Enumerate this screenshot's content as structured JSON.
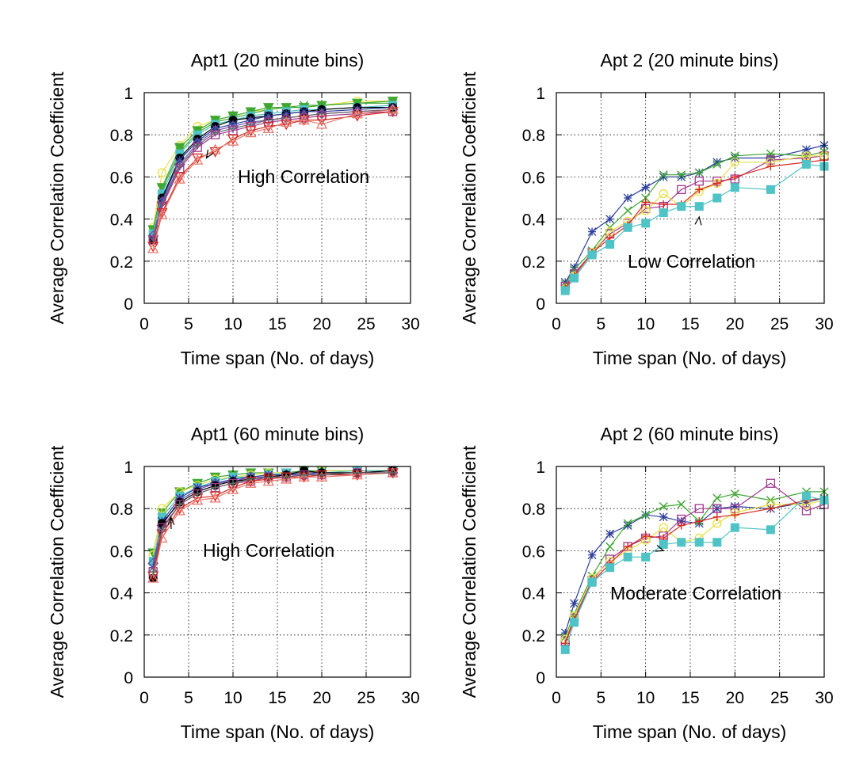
{
  "colors": {
    "red": "#d6281f",
    "navy": "#2c3f9c",
    "green": "#3ea832",
    "yellow": "#e8e045",
    "teal": "#4fc3c6",
    "magenta": "#a0388e",
    "purple": "#7050a8",
    "black": "#000000",
    "gray": "#666666",
    "salmon": "#e8786c",
    "gridline": "#000000"
  },
  "chart_data": [
    {
      "type": "line",
      "title": "Apt1 (20 minute bins)",
      "xlabel": "Time span (No. of days)",
      "ylabel": "Average Correlation Coefficient",
      "xlim": [
        0,
        30
      ],
      "ylim": [
        0,
        1
      ],
      "xticks": [
        "0",
        "5",
        "10",
        "15",
        "20",
        "25",
        "30"
      ],
      "yticks": [
        "0",
        "0.2",
        "0.4",
        "0.6",
        "0.8",
        "1"
      ],
      "grid": true,
      "annotation": {
        "text": "High Correlation",
        "x": 7,
        "y": 0.69
      },
      "x": [
        1,
        2,
        4,
        6,
        8,
        10,
        12,
        14,
        16,
        18,
        20,
        24,
        28
      ],
      "series": [
        {
          "color": "#e8e045",
          "marker": "circle-open",
          "values": [
            0.36,
            0.62,
            0.75,
            0.84,
            0.87,
            0.89,
            0.91,
            0.92,
            0.93,
            0.93,
            0.94,
            0.96,
            0.96
          ]
        },
        {
          "color": "#3ea832",
          "marker": "triangle-down-filled",
          "values": [
            0.35,
            0.55,
            0.74,
            0.82,
            0.87,
            0.89,
            0.91,
            0.93,
            0.93,
            0.93,
            0.94,
            0.95,
            0.96
          ]
        },
        {
          "color": "#3ea832",
          "marker": "x",
          "values": [
            0.34,
            0.54,
            0.72,
            0.81,
            0.86,
            0.88,
            0.9,
            0.92,
            0.93,
            0.94,
            0.94,
            0.95,
            0.95
          ]
        },
        {
          "color": "#4fc3c6",
          "marker": "square-filled",
          "values": [
            0.33,
            0.52,
            0.71,
            0.8,
            0.85,
            0.87,
            0.89,
            0.9,
            0.91,
            0.92,
            0.92,
            0.93,
            0.94
          ]
        },
        {
          "color": "#000000",
          "marker": "circle-filled",
          "values": [
            0.3,
            0.5,
            0.69,
            0.78,
            0.84,
            0.87,
            0.88,
            0.89,
            0.9,
            0.91,
            0.92,
            0.93,
            0.93
          ]
        },
        {
          "color": "#2c3f9c",
          "marker": "star",
          "values": [
            0.31,
            0.49,
            0.68,
            0.77,
            0.83,
            0.85,
            0.87,
            0.89,
            0.9,
            0.91,
            0.91,
            0.92,
            0.93
          ]
        },
        {
          "color": "#7050a8",
          "marker": "diamond-open",
          "values": [
            0.32,
            0.48,
            0.66,
            0.76,
            0.82,
            0.84,
            0.86,
            0.87,
            0.88,
            0.89,
            0.9,
            0.91,
            0.92
          ]
        },
        {
          "color": "#666666",
          "marker": "plus",
          "values": [
            0.31,
            0.47,
            0.65,
            0.75,
            0.81,
            0.83,
            0.85,
            0.87,
            0.88,
            0.89,
            0.9,
            0.91,
            0.92
          ]
        },
        {
          "color": "#a0388e",
          "marker": "square-open",
          "values": [
            0.3,
            0.46,
            0.64,
            0.74,
            0.8,
            0.82,
            0.84,
            0.86,
            0.87,
            0.88,
            0.89,
            0.9,
            0.91
          ]
        },
        {
          "color": "#d6281f",
          "marker": "triangle-down-open",
          "values": [
            0.27,
            0.43,
            0.6,
            0.69,
            0.72,
            0.78,
            0.82,
            0.84,
            0.85,
            0.87,
            0.87,
            0.89,
            0.91
          ]
        },
        {
          "color": "#e8786c",
          "marker": "triangle-up-open",
          "values": [
            0.26,
            0.42,
            0.59,
            0.68,
            0.73,
            0.77,
            0.81,
            0.83,
            0.86,
            0.87,
            0.85,
            0.9,
            0.92
          ]
        }
      ]
    },
    {
      "type": "line",
      "title": "Apt 2 (20 minute bins)",
      "xlabel": "Time span (No. of days)",
      "ylabel": "Average Correlation Coefficient",
      "xlim": [
        0,
        30
      ],
      "ylim": [
        0,
        1
      ],
      "xticks": [
        "0",
        "5",
        "10",
        "15",
        "20",
        "25",
        "30"
      ],
      "yticks": [
        "0",
        "0.2",
        "0.4",
        "0.6",
        "0.8",
        "1"
      ],
      "grid": true,
      "annotation": {
        "text": "Low Correlation",
        "x": 16,
        "y": 0.41
      },
      "x": [
        1,
        2,
        4,
        6,
        8,
        10,
        12,
        14,
        16,
        18,
        20,
        24,
        28,
        30
      ],
      "series": [
        {
          "color": "#2c3f9c",
          "marker": "star",
          "values": [
            0.1,
            0.17,
            0.34,
            0.4,
            0.5,
            0.55,
            0.6,
            0.6,
            0.62,
            0.67,
            0.69,
            0.69,
            0.73,
            0.75
          ]
        },
        {
          "color": "#3ea832",
          "marker": "x",
          "values": [
            0.09,
            0.16,
            0.25,
            0.36,
            0.44,
            0.5,
            0.61,
            0.61,
            0.62,
            0.66,
            0.7,
            0.71,
            0.7,
            0.72
          ]
        },
        {
          "color": "#a0388e",
          "marker": "square-open",
          "values": [
            0.08,
            0.14,
            0.24,
            0.33,
            0.38,
            0.45,
            0.46,
            0.54,
            0.58,
            0.58,
            0.59,
            0.68,
            0.69,
            0.7
          ]
        },
        {
          "color": "#e8e045",
          "marker": "circle-open",
          "values": [
            0.07,
            0.13,
            0.24,
            0.34,
            0.39,
            0.44,
            0.52,
            0.46,
            0.53,
            0.57,
            0.67,
            0.67,
            0.7,
            0.7
          ]
        },
        {
          "color": "#d6281f",
          "marker": "plus",
          "values": [
            0.07,
            0.13,
            0.24,
            0.31,
            0.37,
            0.48,
            0.47,
            0.47,
            0.54,
            0.57,
            0.6,
            0.65,
            0.67,
            0.68
          ]
        },
        {
          "color": "#4fc3c6",
          "marker": "square-filled",
          "values": [
            0.06,
            0.12,
            0.23,
            0.28,
            0.36,
            0.38,
            0.43,
            0.46,
            0.46,
            0.5,
            0.55,
            0.54,
            0.66,
            0.65
          ]
        }
      ]
    },
    {
      "type": "line",
      "title": "Apt1 (60 minute bins)",
      "xlabel": "Time span (No. of days)",
      "ylabel": "Average Correlation Coefficient",
      "xlim": [
        0,
        30
      ],
      "ylim": [
        0,
        1
      ],
      "xticks": [
        "0",
        "5",
        "10",
        "15",
        "20",
        "25",
        "30"
      ],
      "yticks": [
        "0",
        "0.2",
        "0.4",
        "0.6",
        "0.8",
        "1"
      ],
      "grid": true,
      "annotation": {
        "text": "High Correlation",
        "x": 3,
        "y": 0.76
      },
      "x": [
        1,
        2,
        4,
        6,
        8,
        10,
        12,
        14,
        16,
        18,
        20,
        24,
        28
      ],
      "series": [
        {
          "color": "#3ea832",
          "marker": "triangle-down-filled",
          "values": [
            0.59,
            0.78,
            0.88,
            0.92,
            0.95,
            0.96,
            0.97,
            0.97,
            0.97,
            0.98,
            0.98,
            0.98,
            0.98
          ]
        },
        {
          "color": "#e8e045",
          "marker": "circle-open",
          "values": [
            0.58,
            0.8,
            0.88,
            0.91,
            0.94,
            0.95,
            0.96,
            0.97,
            0.97,
            0.97,
            0.98,
            0.98,
            0.98
          ]
        },
        {
          "color": "#4fc3c6",
          "marker": "square-filled",
          "values": [
            0.55,
            0.76,
            0.86,
            0.9,
            0.93,
            0.95,
            0.95,
            0.96,
            0.97,
            0.97,
            0.97,
            0.98,
            0.98
          ]
        },
        {
          "color": "#2c3f9c",
          "marker": "star",
          "values": [
            0.52,
            0.74,
            0.85,
            0.9,
            0.92,
            0.94,
            0.95,
            0.96,
            0.96,
            0.97,
            0.97,
            0.97,
            0.98
          ]
        },
        {
          "color": "#7050a8",
          "marker": "diamond-open",
          "values": [
            0.54,
            0.72,
            0.84,
            0.89,
            0.92,
            0.93,
            0.95,
            0.95,
            0.96,
            0.96,
            0.97,
            0.97,
            0.97
          ]
        },
        {
          "color": "#000000",
          "marker": "circle-filled",
          "values": [
            0.47,
            0.73,
            0.83,
            0.88,
            0.91,
            0.93,
            0.94,
            0.95,
            0.96,
            0.98,
            0.97,
            0.97,
            0.98
          ]
        },
        {
          "color": "#a0388e",
          "marker": "square-open",
          "values": [
            0.5,
            0.71,
            0.82,
            0.87,
            0.9,
            0.92,
            0.93,
            0.95,
            0.95,
            0.96,
            0.96,
            0.97,
            0.97
          ]
        },
        {
          "color": "#d6281f",
          "marker": "triangle-down-open",
          "values": [
            0.48,
            0.68,
            0.8,
            0.85,
            0.86,
            0.9,
            0.93,
            0.94,
            0.95,
            0.95,
            0.96,
            0.96,
            0.97
          ]
        },
        {
          "color": "#e8786c",
          "marker": "triangle-up-open",
          "values": [
            0.47,
            0.66,
            0.79,
            0.84,
            0.85,
            0.89,
            0.92,
            0.93,
            0.94,
            0.95,
            0.95,
            0.96,
            0.97
          ]
        },
        {
          "color": "#666666",
          "marker": "plus",
          "values": [
            0.5,
            0.7,
            0.82,
            0.87,
            0.9,
            0.92,
            0.94,
            0.95,
            0.95,
            0.96,
            0.96,
            0.97,
            0.97
          ]
        }
      ]
    },
    {
      "type": "line",
      "title": "Apt 2 (60 minute bins)",
      "xlabel": "Time span (No. of days)",
      "ylabel": "Average Correlation Coefficient",
      "xlim": [
        0,
        30
      ],
      "ylim": [
        0,
        1
      ],
      "xticks": [
        "0",
        "5",
        "10",
        "15",
        "20",
        "25",
        "30"
      ],
      "yticks": [
        "0",
        "0.2",
        "0.4",
        "0.6",
        "0.8",
        "1"
      ],
      "grid": true,
      "annotation": {
        "text": "Moderate Correlation",
        "x": 12,
        "y": 0.6
      },
      "x": [
        1,
        2,
        4,
        6,
        8,
        10,
        12,
        14,
        16,
        18,
        20,
        24,
        28,
        30
      ],
      "series": [
        {
          "color": "#2c3f9c",
          "marker": "star",
          "values": [
            0.21,
            0.35,
            0.58,
            0.68,
            0.72,
            0.77,
            0.76,
            0.74,
            0.73,
            0.8,
            0.81,
            0.8,
            0.83,
            0.85
          ]
        },
        {
          "color": "#3ea832",
          "marker": "x",
          "values": [
            0.19,
            0.3,
            0.48,
            0.62,
            0.73,
            0.77,
            0.81,
            0.82,
            0.74,
            0.85,
            0.87,
            0.84,
            0.88,
            0.88
          ]
        },
        {
          "color": "#a0388e",
          "marker": "square-open",
          "values": [
            0.17,
            0.28,
            0.46,
            0.56,
            0.62,
            0.66,
            0.67,
            0.75,
            0.8,
            0.8,
            0.8,
            0.92,
            0.79,
            0.82
          ]
        },
        {
          "color": "#e8e045",
          "marker": "circle-open",
          "values": [
            0.18,
            0.29,
            0.47,
            0.55,
            0.6,
            0.65,
            0.71,
            0.64,
            0.66,
            0.73,
            0.78,
            0.82,
            0.82,
            0.84
          ]
        },
        {
          "color": "#d6281f",
          "marker": "plus",
          "values": [
            0.16,
            0.27,
            0.45,
            0.54,
            0.62,
            0.67,
            0.66,
            0.72,
            0.74,
            0.76,
            0.77,
            0.8,
            0.84,
            0.85
          ]
        },
        {
          "color": "#4fc3c6",
          "marker": "square-filled",
          "values": [
            0.13,
            0.26,
            0.45,
            0.52,
            0.57,
            0.57,
            0.63,
            0.64,
            0.64,
            0.64,
            0.71,
            0.7,
            0.86,
            0.84
          ]
        }
      ]
    }
  ]
}
